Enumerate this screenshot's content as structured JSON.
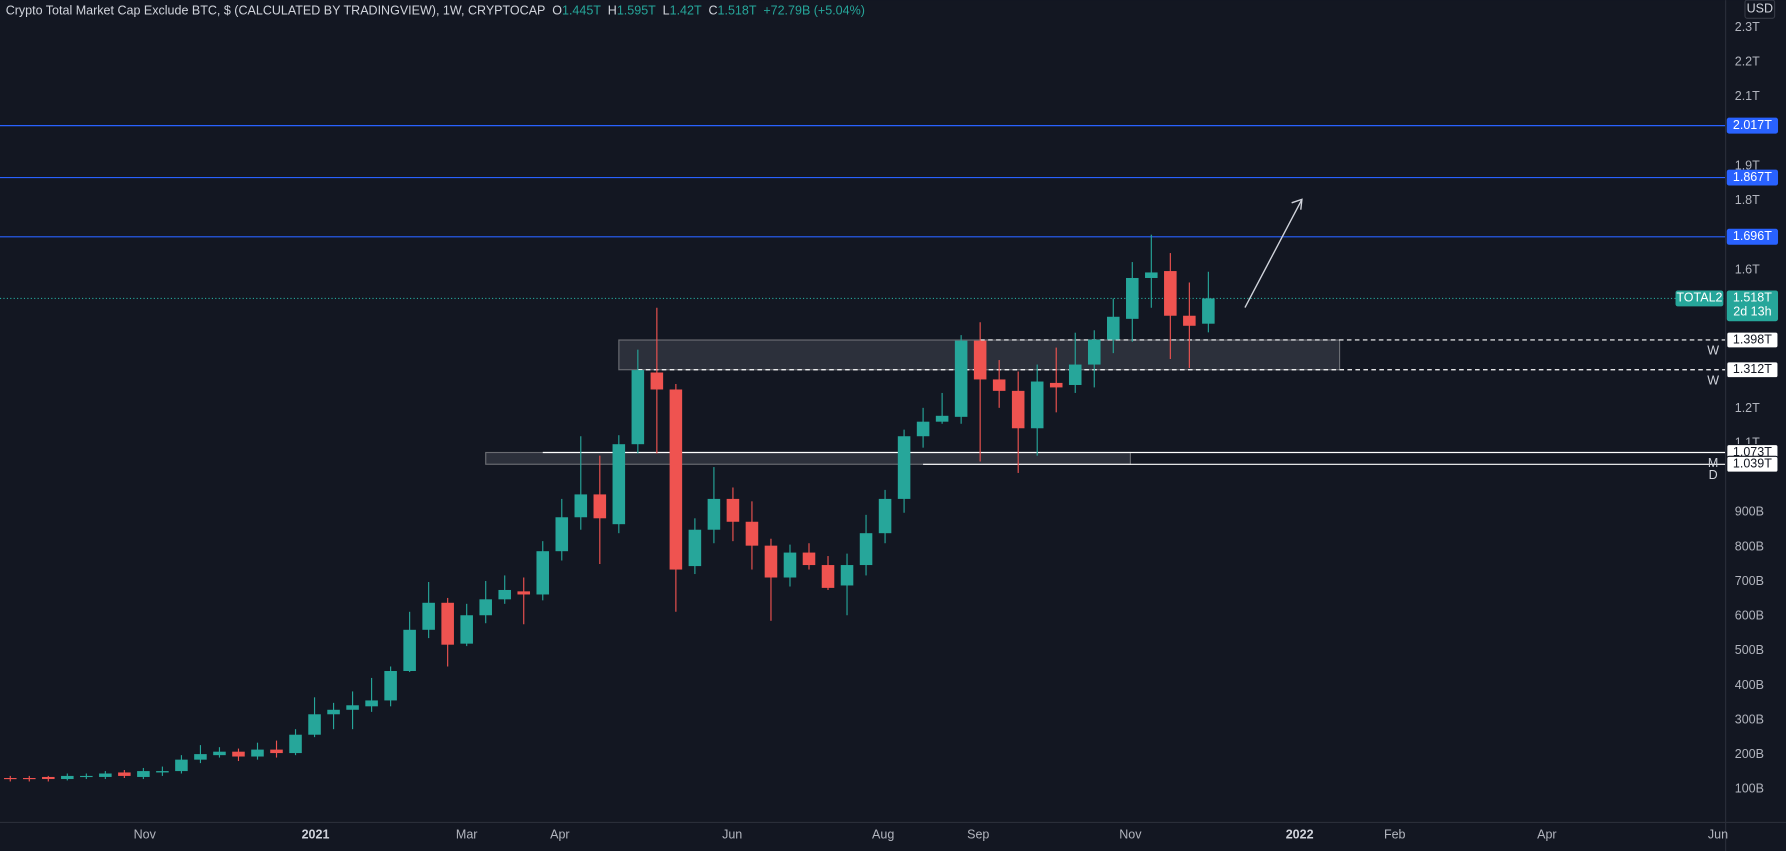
{
  "chart_data": {
    "type": "candlestick",
    "title": "Crypto Total Market Cap Exclude BTC, $ (CALCULATED BY TRADINGVIEW), 1W, CRYPTOCAP",
    "legend": [
      {
        "label": "O",
        "value": "1.445T"
      },
      {
        "label": "H",
        "value": "1.595T"
      },
      {
        "label": "L",
        "value": "1.42T"
      },
      {
        "label": "C",
        "value": "1.518T"
      }
    ],
    "change": "+72.79B (+5.04%)",
    "currency": "USD",
    "symbol": "TOTAL2",
    "countdown": "2d 13h",
    "up_color": "#26a69a",
    "down_color": "#ef5350",
    "open": [
      133,
      133,
      136,
      130,
      136,
      136,
      149,
      136,
      149,
      153,
      186,
      199,
      209,
      195,
      215,
      205,
      258,
      317,
      330,
      340,
      357,
      442,
      561,
      639,
      521,
      603,
      649,
      672,
      663,
      788,
      886,
      952,
      866,
      1097,
      1304,
      1255,
      745,
      850,
      939,
      873,
      804,
      712,
      784,
      748,
      689,
      748,
      840,
      939,
      1120,
      1162,
      1176,
      1396,
      1284,
      1251,
      1143,
      1274,
      1268,
      1327,
      1399,
      1459,
      1577,
      1597,
      1468,
      1445
    ],
    "high": [
      139,
      139,
      139,
      146,
      146,
      153,
      156,
      162,
      166,
      199,
      228,
      222,
      218,
      235,
      241,
      274,
      366,
      350,
      383,
      422,
      455,
      613,
      699,
      653,
      636,
      702,
      718,
      712,
      817,
      939,
      1120,
      1064,
      1123,
      1370,
      1491,
      1271,
      883,
      1031,
      972,
      932,
      824,
      807,
      811,
      774,
      781,
      893,
      965,
      1139,
      1202,
      1245,
      1412,
      1449,
      1340,
      1307,
      1327,
      1376,
      1419,
      1426,
      1518,
      1623,
      1702,
      1649,
      1564,
      1595
    ],
    "low": [
      123,
      123,
      123,
      126,
      130,
      130,
      133,
      130,
      139,
      146,
      176,
      192,
      182,
      186,
      192,
      199,
      251,
      274,
      274,
      324,
      340,
      439,
      537,
      455,
      514,
      580,
      636,
      577,
      646,
      761,
      850,
      751,
      840,
      1070,
      1070,
      613,
      722,
      811,
      817,
      735,
      587,
      686,
      735,
      676,
      603,
      718,
      811,
      899,
      1087,
      1156,
      1156,
      1047,
      1202,
      1014,
      1064,
      1189,
      1245,
      1261,
      1360,
      1393,
      1491,
      1343,
      1317,
      1420
    ],
    "close": [
      130,
      130,
      130,
      139,
      139,
      146,
      139,
      153,
      153,
      186,
      202,
      209,
      195,
      215,
      205,
      258,
      317,
      330,
      343,
      357,
      442,
      561,
      639,
      518,
      603,
      649,
      676,
      663,
      788,
      886,
      952,
      883,
      1097,
      1311,
      1255,
      735,
      850,
      939,
      873,
      804,
      712,
      784,
      748,
      682,
      748,
      840,
      939,
      1120,
      1162,
      1179,
      1396,
      1284,
      1251,
      1143,
      1278,
      1261,
      1327,
      1399,
      1465,
      1577,
      1593,
      1468,
      1439,
      1518
    ],
    "xlim": [
      -0.54,
      90.2
    ],
    "xticks": [
      {
        "value": 7.07,
        "label": "Nov"
      },
      {
        "value": 16.05,
        "label": "2021"
      },
      {
        "value": 24.0,
        "label": "Mar"
      },
      {
        "value": 28.9,
        "label": "Apr"
      },
      {
        "value": 37.96,
        "label": "Jun"
      },
      {
        "value": 45.9,
        "label": "Aug"
      },
      {
        "value": 50.9,
        "label": "Sep"
      },
      {
        "value": 58.9,
        "label": "Nov"
      },
      {
        "value": 67.8,
        "label": "2022"
      },
      {
        "value": 72.8,
        "label": "Feb"
      },
      {
        "value": 80.8,
        "label": "Apr"
      },
      {
        "value": 89.8,
        "label": "Jun"
      }
    ],
    "ylim": [
      11.2,
      2379.6
    ],
    "yticks": [
      {
        "value": 2300,
        "label": "2.3T"
      },
      {
        "value": 2200,
        "label": "2.2T"
      },
      {
        "value": 2100,
        "label": "2.1T"
      },
      {
        "value": 1900,
        "label": "1.9T"
      },
      {
        "value": 1800,
        "label": "1.8T"
      },
      {
        "value": 1600,
        "label": "1.6T"
      },
      {
        "value": 1200,
        "label": "1.2T"
      },
      {
        "value": 1100,
        "label": "1.1T"
      },
      {
        "value": 900,
        "label": "900B"
      },
      {
        "value": 800,
        "label": "800B"
      },
      {
        "value": 700,
        "label": "700B"
      },
      {
        "value": 600,
        "label": "600B"
      },
      {
        "value": 500,
        "label": "500B"
      },
      {
        "value": 400,
        "label": "400B"
      },
      {
        "value": 300,
        "label": "300B"
      },
      {
        "value": 200,
        "label": "200B"
      },
      {
        "value": 100,
        "label": "100B"
      }
    ],
    "grid": false,
    "last_price": {
      "value": 1518,
      "label": "1.518T"
    },
    "levels": [
      {
        "value": 2017,
        "label": "2.017T",
        "color": "#2962ff"
      },
      {
        "value": 1867,
        "label": "1.867T",
        "color": "#2962ff"
      },
      {
        "value": 1696,
        "label": "1.696T",
        "color": "#2962ff"
      },
      {
        "value": 1398,
        "label": "1.398T",
        "tag": "W",
        "dashed": true,
        "color": "#ffffff",
        "from": 51
      },
      {
        "value": 1312,
        "label": "1.312T",
        "tag": "W",
        "dashed": true,
        "color": "#ffffff",
        "from": 33
      },
      {
        "value": 1073,
        "label": "1.073T",
        "tag": "M",
        "color": "#ffffff",
        "from": 28
      },
      {
        "value": 1039,
        "label": "1.039T",
        "tag": "D",
        "color": "#ffffff",
        "from": 48
      }
    ],
    "zones": [
      {
        "from": 32,
        "to": 69.9,
        "top": 1398,
        "bottom": 1312
      },
      {
        "from": 25,
        "to": 58.9,
        "top": 1073,
        "bottom": 1039
      }
    ]
  }
}
